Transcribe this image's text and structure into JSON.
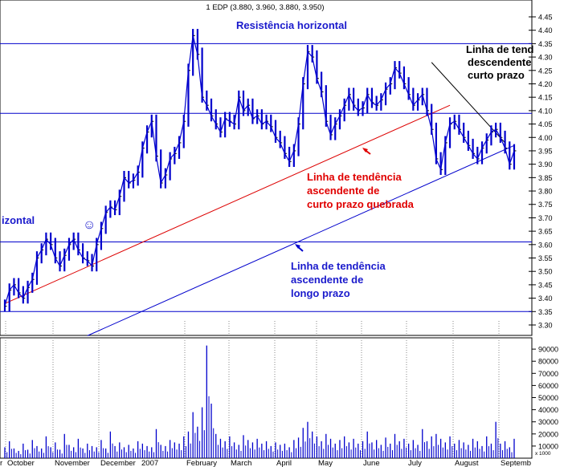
{
  "header": {
    "title": "1 EDP (3.880, 3.960, 3.880, 3.950)"
  },
  "colors": {
    "price": "#0000cc",
    "volume": "#0000cc",
    "hline": "#0000cc",
    "long_trend": "#0000cc",
    "short_trend": "#dd0000",
    "desc_trend": "#000000",
    "blue_text": "#1a1acc",
    "red_text": "#e00000",
    "grid": "#8a8a8a"
  },
  "annotations": {
    "resistance": "Resistência horizontal",
    "left_horizontal_top": "izontal",
    "desc_line1": "Linha de tend",
    "desc_line2": "descendente",
    "desc_line3": "curto prazo",
    "short_line1": "Linha de tendência",
    "short_line2": "ascendente de",
    "short_line3": "curto prazo quebrada",
    "long_line1": "Linha de tendência",
    "long_line2": "ascendente de",
    "long_line3": "longo prazo",
    "smiley": "☺"
  },
  "chart_data": [
    {
      "type": "line",
      "title": "1 EDP (3.880, 3.960, 3.880, 3.950)",
      "ylim": [
        3.3,
        4.45
      ],
      "y_ticks": [
        "4.45",
        "4.40",
        "4.35",
        "4.30",
        "4.25",
        "4.20",
        "4.15",
        "4.10",
        "4.05",
        "4.00",
        "3.95",
        "3.90",
        "3.85",
        "3.80",
        "3.75",
        "3.70",
        "3.65",
        "3.60",
        "3.55",
        "3.50",
        "3.45",
        "3.40",
        "3.35",
        "3.30"
      ],
      "x_ticks": [
        "r",
        "October",
        "November",
        "December",
        "2007",
        "February",
        "March",
        "April",
        "May",
        "June",
        "July",
        "August",
        "Septemb"
      ],
      "horizontal_lines": [
        4.35,
        4.09,
        3.61,
        3.35
      ],
      "trendlines": [
        {
          "name": "short_trend",
          "from": {
            "x": 0.0,
            "y": 3.38
          },
          "to": {
            "x": 97.0,
            "y": 4.12
          }
        },
        {
          "name": "long_trend",
          "from": {
            "x": 18.0,
            "y": 3.26
          },
          "to": {
            "x": 111.0,
            "y": 3.97
          }
        },
        {
          "name": "desc_trend",
          "from": {
            "x": 93.0,
            "y": 4.28
          },
          "to": {
            "x": 109.0,
            "y": 3.98
          }
        }
      ],
      "x_index_range": [
        0,
        111
      ],
      "series": [
        {
          "values": [
            3.37,
            3.43,
            3.45,
            3.42,
            3.4,
            3.44,
            3.47,
            3.55,
            3.58,
            3.62,
            3.6,
            3.55,
            3.52,
            3.56,
            3.6,
            3.62,
            3.58,
            3.55,
            3.54,
            3.52,
            3.6,
            3.66,
            3.72,
            3.74,
            3.73,
            3.78,
            3.85,
            3.83,
            3.84,
            3.87,
            3.96,
            4.02,
            4.06,
            3.93,
            3.83,
            3.86,
            3.92,
            3.94,
            3.98,
            4.06,
            4.25,
            4.38,
            4.31,
            4.15,
            4.12,
            4.08,
            4.05,
            4.02,
            4.07,
            4.06,
            4.05,
            4.15,
            4.1,
            4.12,
            4.07,
            4.08,
            4.05,
            4.06,
            4.04,
            4.0,
            3.98,
            3.94,
            3.91,
            3.95,
            4.05,
            4.2,
            4.32,
            4.3,
            4.22,
            4.17,
            4.06,
            4.01,
            4.05,
            4.08,
            4.12,
            4.16,
            4.12,
            4.1,
            4.11,
            4.16,
            4.13,
            4.12,
            4.14,
            4.18,
            4.2,
            4.26,
            4.24,
            4.2,
            4.16,
            4.12,
            4.14,
            4.16,
            4.1,
            4.03,
            3.92,
            3.88,
            3.98,
            4.05,
            4.06,
            4.03,
            4.0,
            3.97,
            3.94,
            3.92,
            3.96,
            3.99,
            4.02,
            4.03,
            4.0,
            3.96,
            3.9,
            3.95
          ]
        }
      ]
    },
    {
      "type": "bar",
      "ylim": [
        0,
        100000
      ],
      "y_ticks": [
        "90000",
        "80000",
        "70000",
        "60000",
        "50000",
        "40000",
        "30000",
        "20000",
        "10000"
      ],
      "y_unit_label": "x 1000",
      "series": [
        {
          "values": [
            9000,
            14000,
            8000,
            6000,
            12000,
            7000,
            15000,
            10000,
            8000,
            18000,
            9000,
            13000,
            7000,
            20000,
            11000,
            9000,
            16000,
            8000,
            12000,
            10000,
            9000,
            15000,
            8000,
            22000,
            10000,
            13000,
            9000,
            11000,
            8000,
            14000,
            12000,
            10000,
            9000,
            24000,
            11000,
            10000,
            15000,
            13000,
            12000,
            18000,
            22000,
            38000,
            26000,
            42000,
            93000,
            45000,
            20000,
            16000,
            14000,
            18000,
            13000,
            11000,
            19000,
            15000,
            13000,
            16000,
            12000,
            14000,
            10000,
            13000,
            11000,
            12000,
            9000,
            15000,
            17000,
            25000,
            30000,
            22000,
            18000,
            14000,
            20000,
            16000,
            12000,
            15000,
            18000,
            13000,
            16000,
            12000,
            14000,
            22000,
            13000,
            15000,
            11000,
            17000,
            12000,
            20000,
            14000,
            16000,
            12000,
            15000,
            11000,
            24000,
            14000,
            18000,
            20000,
            16000,
            13000,
            18000,
            12000,
            15000,
            13000,
            11000,
            16000,
            14000,
            10000,
            18000,
            12000,
            30000,
            12000,
            14000,
            9000,
            16000
          ]
        }
      ]
    }
  ]
}
